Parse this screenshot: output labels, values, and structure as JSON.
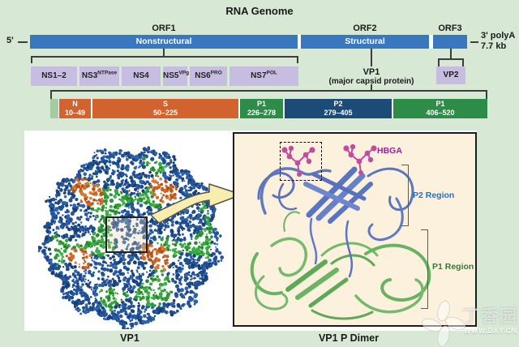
{
  "title": "RNA Genome",
  "genome": {
    "five_prime": "5'",
    "three_prime_line1": "3' polyA",
    "three_prime_line2": "7.7 kb",
    "orfs": [
      {
        "label": "ORF1",
        "bar_text": "Nonstructural"
      },
      {
        "label": "ORF2",
        "bar_text": "Structural"
      },
      {
        "label": "ORF3",
        "bar_text": ""
      }
    ]
  },
  "ns_proteins": [
    {
      "base": "NS1–2",
      "sup": ""
    },
    {
      "base": "NS3",
      "sup": "NTPase"
    },
    {
      "base": "NS4",
      "sup": ""
    },
    {
      "base": "NS5",
      "sup": "VPg"
    },
    {
      "base": "NS6",
      "sup": "PRO"
    },
    {
      "base": "NS7",
      "sup": "POL"
    }
  ],
  "vp1_caption": {
    "line1": "VP1",
    "line2": "(major capsid protein)"
  },
  "vp2_label": "VP2",
  "domain_bar": {
    "segments": [
      {
        "name": "",
        "range": "",
        "color": "#a6cba1"
      },
      {
        "name": "N",
        "range": "10–49",
        "color": "#d2622e"
      },
      {
        "name": "S",
        "range": "50–225",
        "color": "#d2622e"
      },
      {
        "name": "P1",
        "range": "226–278",
        "color": "#2e8c49"
      },
      {
        "name": "P2",
        "range": "279–405",
        "color": "#1d4b77"
      },
      {
        "name": "P1",
        "range": "406–520",
        "color": "#2e8c49"
      }
    ]
  },
  "panels": {
    "left_caption": "VP1",
    "right_caption": "VP1 P Dimer",
    "dimer_labels": {
      "hbga": "HBGA",
      "p2_region": "P2 Region",
      "p1_region": "P1 Region"
    }
  },
  "watermark": {
    "logo_text": "丁香园",
    "url": "WWW.DXY.CN"
  },
  "colors": {
    "background": "#d7e8d5",
    "genome_bar_blue": "#3a77c1",
    "protein_box_purple": "#c6bde1",
    "domain_orange": "#d2622e",
    "domain_green": "#2e8c49",
    "domain_navy": "#1d4b77",
    "domain_lightgreen": "#a6cba1",
    "panel_cream": "#fbf1dc",
    "hbga_magenta": "#a11b9b",
    "p2_label_blue": "#1b74c8",
    "p1_label_green": "#2f8032",
    "capsid_blue": "#27589f",
    "capsid_green": "#37a93f",
    "capsid_orange": "#cf6b28"
  }
}
